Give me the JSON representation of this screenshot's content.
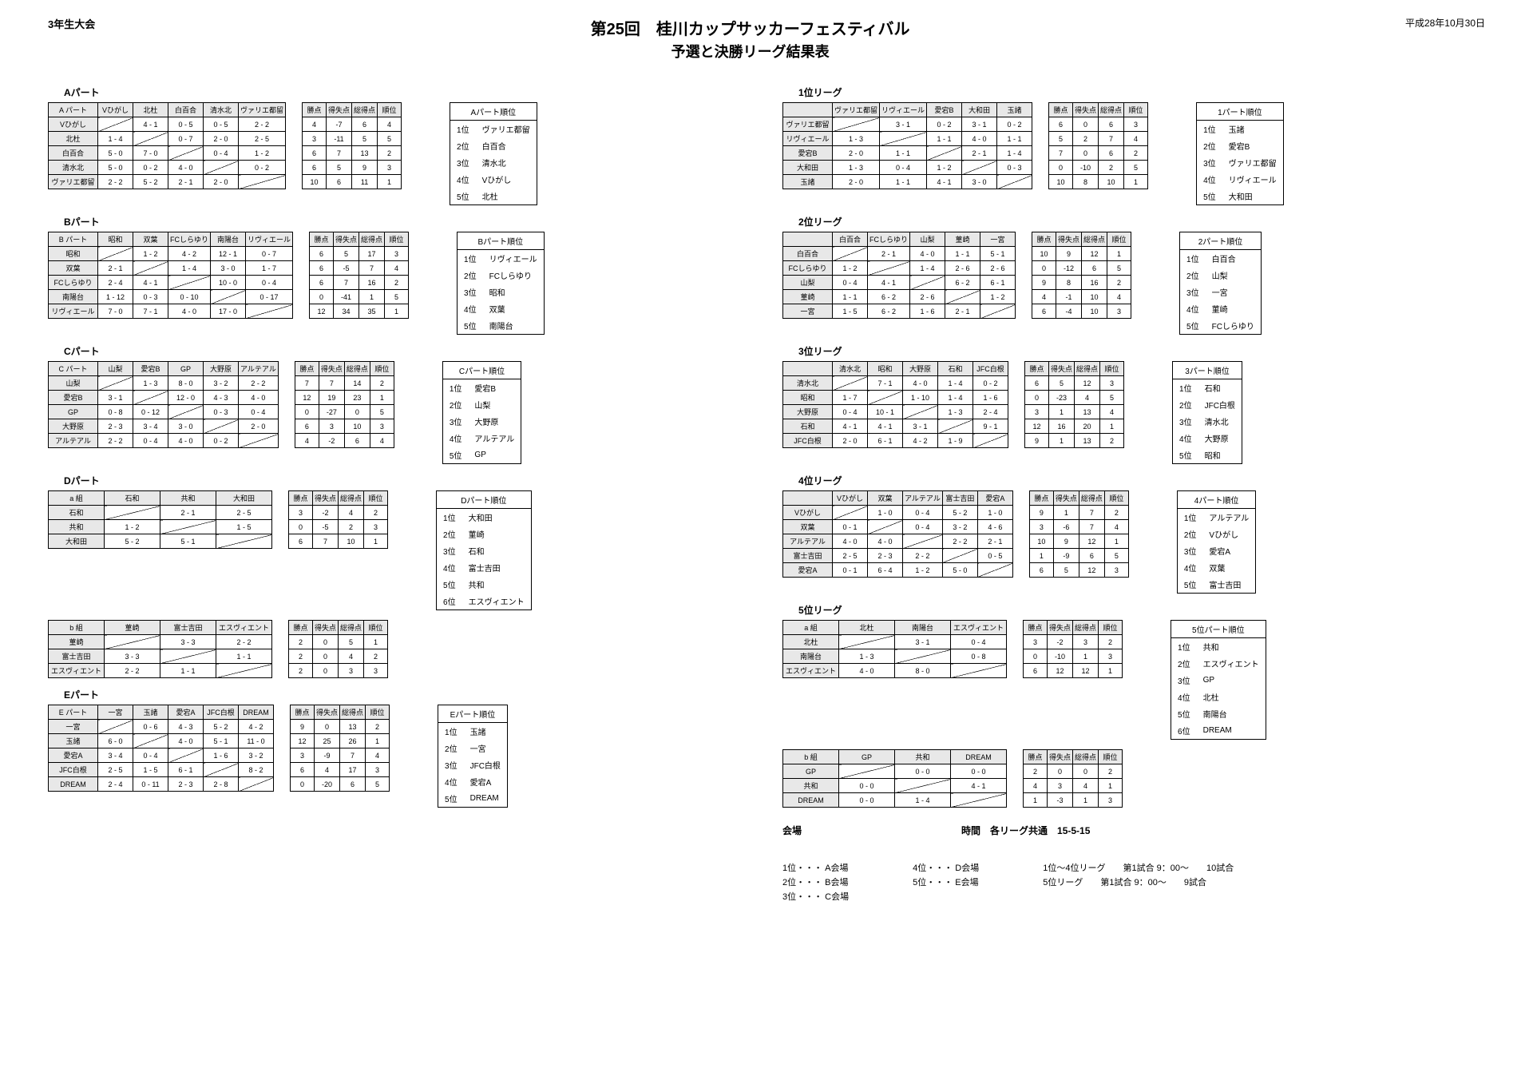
{
  "header": {
    "left": "3年生大会",
    "title1": "第25回　桂川カップサッカーフェスティバル",
    "title2": "予選と決勝リーグ結果表",
    "right": "平成28年10月30日"
  },
  "stat_headers": [
    "勝点",
    "得失点",
    "総得点",
    "順位"
  ],
  "stat_headers_wide": [
    "勝点",
    "得失点",
    "総得点",
    "順位"
  ],
  "left_parts": [
    {
      "label": "Aパート",
      "grid_header": "A パート",
      "teams": [
        "Vひがし",
        "北杜",
        "白百合",
        "清水北",
        "ヴァリエ都留"
      ],
      "scores": [
        [
          null,
          "4 - 1",
          "0 - 5",
          "0 - 5",
          "2 - 2"
        ],
        [
          "1 - 4",
          null,
          "0 - 7",
          "2 - 0",
          "2 - 5"
        ],
        [
          "5 - 0",
          "7 - 0",
          null,
          "0 - 4",
          "1 - 2"
        ],
        [
          "5 - 0",
          "0 - 2",
          "4 - 0",
          null,
          "0 - 2"
        ],
        [
          "2 - 2",
          "5 - 2",
          "2 - 1",
          "2 - 0",
          null
        ]
      ],
      "stats": [
        [
          "4",
          "-7",
          "6",
          "4"
        ],
        [
          "3",
          "-11",
          "5",
          "5"
        ],
        [
          "6",
          "7",
          "13",
          "2"
        ],
        [
          "6",
          "5",
          "9",
          "3"
        ],
        [
          "10",
          "6",
          "11",
          "1"
        ]
      ],
      "rank_header": "Aパート順位",
      "ranks": [
        [
          "1位",
          "ヴァリエ都留"
        ],
        [
          "2位",
          "白百合"
        ],
        [
          "3位",
          "清水北"
        ],
        [
          "4位",
          "Vひがし"
        ],
        [
          "5位",
          "北杜"
        ]
      ]
    },
    {
      "label": "Bパート",
      "grid_header": "B パート",
      "teams": [
        "昭和",
        "双葉",
        "FCしらゆり",
        "南陽台",
        "リヴィエール"
      ],
      "scores": [
        [
          null,
          "1 - 2",
          "4 - 2",
          "12 - 1",
          "0 - 7"
        ],
        [
          "2 - 1",
          null,
          "1 - 4",
          "3 - 0",
          "1 - 7"
        ],
        [
          "2 - 4",
          "4 - 1",
          null,
          "10 - 0",
          "0 - 4"
        ],
        [
          "1 - 12",
          "0 - 3",
          "0 - 10",
          null,
          "0 - 17"
        ],
        [
          "7 - 0",
          "7 - 1",
          "4 - 0",
          "17 - 0",
          null
        ]
      ],
      "stats": [
        [
          "6",
          "5",
          "17",
          "3"
        ],
        [
          "6",
          "-5",
          "7",
          "4"
        ],
        [
          "6",
          "7",
          "16",
          "2"
        ],
        [
          "0",
          "-41",
          "1",
          "5"
        ],
        [
          "12",
          "34",
          "35",
          "1"
        ]
      ],
      "rank_header": "Bパート順位",
      "ranks": [
        [
          "1位",
          "リヴィエール"
        ],
        [
          "2位",
          "FCしらゆり"
        ],
        [
          "3位",
          "昭和"
        ],
        [
          "4位",
          "双葉"
        ],
        [
          "5位",
          "南陽台"
        ]
      ]
    },
    {
      "label": "Cパート",
      "grid_header": "C パート",
      "teams": [
        "山梨",
        "愛宕B",
        "GP",
        "大野原",
        "アルテアル"
      ],
      "scores": [
        [
          null,
          "1 - 3",
          "8 - 0",
          "3 - 2",
          "2 - 2"
        ],
        [
          "3 - 1",
          null,
          "12 - 0",
          "4 - 3",
          "4 - 0"
        ],
        [
          "0 - 8",
          "0 - 12",
          null,
          "0 - 3",
          "0 - 4"
        ],
        [
          "2 - 3",
          "3 - 4",
          "3 - 0",
          null,
          "2 - 0"
        ],
        [
          "2 - 2",
          "0 - 4",
          "4 - 0",
          "0 - 2",
          null
        ]
      ],
      "stats": [
        [
          "7",
          "7",
          "14",
          "2"
        ],
        [
          "12",
          "19",
          "23",
          "1"
        ],
        [
          "0",
          "-27",
          "0",
          "5"
        ],
        [
          "6",
          "3",
          "10",
          "3"
        ],
        [
          "4",
          "-2",
          "6",
          "4"
        ]
      ],
      "rank_header": "Cパート順位",
      "ranks": [
        [
          "1位",
          "愛宕B"
        ],
        [
          "2位",
          "山梨"
        ],
        [
          "3位",
          "大野原"
        ],
        [
          "4位",
          "アルテアル"
        ],
        [
          "5位",
          "GP"
        ]
      ]
    }
  ],
  "d_part": {
    "label": "Dパート",
    "a_header": "a 組",
    "a_teams": [
      "石和",
      "共和",
      "大和田"
    ],
    "a_scores": [
      [
        null,
        "2 - 1",
        "2 - 5"
      ],
      [
        "1 - 2",
        null,
        "1 - 5"
      ],
      [
        "5 - 2",
        "5 - 1",
        null
      ]
    ],
    "a_stats": [
      [
        "3",
        "-2",
        "4",
        "2"
      ],
      [
        "0",
        "-5",
        "2",
        "3"
      ],
      [
        "6",
        "7",
        "10",
        "1"
      ]
    ],
    "b_header": "b 組",
    "b_teams": [
      "菫崎",
      "富士吉田",
      "エスヴィエント"
    ],
    "b_scores": [
      [
        null,
        "3 - 3",
        "2 - 2"
      ],
      [
        "3 - 3",
        null,
        "1 - 1"
      ],
      [
        "2 - 2",
        "1 - 1",
        null
      ]
    ],
    "b_stats": [
      [
        "2",
        "0",
        "5",
        "1"
      ],
      [
        "2",
        "0",
        "4",
        "2"
      ],
      [
        "2",
        "0",
        "3",
        "3"
      ]
    ],
    "rank_header": "Dパート順位",
    "ranks": [
      [
        "1位",
        "大和田"
      ],
      [
        "2位",
        "菫崎"
      ],
      [
        "3位",
        "石和"
      ],
      [
        "4位",
        "富士吉田"
      ],
      [
        "5位",
        "共和"
      ],
      [
        "6位",
        "エスヴィエント"
      ]
    ]
  },
  "e_part": {
    "label": "Eパート",
    "grid_header": "E パート",
    "teams": [
      "一宮",
      "玉諸",
      "愛宕A",
      "JFC白根",
      "DREAM"
    ],
    "scores": [
      [
        null,
        "0 - 6",
        "4 - 3",
        "5 - 2",
        "4 - 2"
      ],
      [
        "6 - 0",
        null,
        "4 - 0",
        "5 - 1",
        "11 - 0"
      ],
      [
        "3 - 4",
        "0 - 4",
        null,
        "1 - 6",
        "3 - 2"
      ],
      [
        "2 - 5",
        "1 - 5",
        "6 - 1",
        null,
        "8 - 2"
      ],
      [
        "2 - 4",
        "0 - 11",
        "2 - 3",
        "2 - 8",
        null
      ]
    ],
    "stats": [
      [
        "9",
        "0",
        "13",
        "2"
      ],
      [
        "12",
        "25",
        "26",
        "1"
      ],
      [
        "3",
        "-9",
        "7",
        "4"
      ],
      [
        "6",
        "4",
        "17",
        "3"
      ],
      [
        "0",
        "-20",
        "6",
        "5"
      ]
    ],
    "rank_header": "Eパート順位",
    "ranks": [
      [
        "1位",
        "玉諸"
      ],
      [
        "2位",
        "一宮"
      ],
      [
        "3位",
        "JFC白根"
      ],
      [
        "4位",
        "愛宕A"
      ],
      [
        "5位",
        "DREAM"
      ]
    ]
  },
  "right_leagues": [
    {
      "label": "1位リーグ",
      "teams": [
        "ヴァリエ都留",
        "リヴィエール",
        "愛宕B",
        "大和田",
        "玉諸"
      ],
      "scores": [
        [
          null,
          "3 - 1",
          "0 - 2",
          "3 - 1",
          "0 - 2"
        ],
        [
          "1 - 3",
          null,
          "1 - 1",
          "4 - 0",
          "1 - 1"
        ],
        [
          "2 - 0",
          "1 - 1",
          null,
          "2 - 1",
          "1 - 4"
        ],
        [
          "1 - 3",
          "0 - 4",
          "1 - 2",
          null,
          "0 - 3"
        ],
        [
          "2 - 0",
          "1 - 1",
          "4 - 1",
          "3 - 0",
          null
        ]
      ],
      "stats": [
        [
          "6",
          "0",
          "6",
          "3"
        ],
        [
          "5",
          "2",
          "7",
          "4"
        ],
        [
          "7",
          "0",
          "6",
          "2"
        ],
        [
          "0",
          "-10",
          "2",
          "5"
        ],
        [
          "10",
          "8",
          "10",
          "1"
        ]
      ],
      "rank_header": "1パート順位",
      "ranks": [
        [
          "1位",
          "玉諸"
        ],
        [
          "2位",
          "愛宕B"
        ],
        [
          "3位",
          "ヴァリエ都留"
        ],
        [
          "4位",
          "リヴィエール"
        ],
        [
          "5位",
          "大和田"
        ]
      ]
    },
    {
      "label": "2位リーグ",
      "teams": [
        "白百合",
        "FCしらゆり",
        "山梨",
        "菫崎",
        "一宮"
      ],
      "scores": [
        [
          null,
          "2 - 1",
          "4 - 0",
          "1 - 1",
          "5 - 1"
        ],
        [
          "1 - 2",
          null,
          "1 - 4",
          "2 - 6",
          "2 - 6"
        ],
        [
          "0 - 4",
          "4 - 1",
          null,
          "6 - 2",
          "6 - 1"
        ],
        [
          "1 - 1",
          "6 - 2",
          "2 - 6",
          null,
          "1 - 2"
        ],
        [
          "1 - 5",
          "6 - 2",
          "1 - 6",
          "2 - 1",
          null
        ]
      ],
      "stats": [
        [
          "10",
          "9",
          "12",
          "1"
        ],
        [
          "0",
          "-12",
          "6",
          "5"
        ],
        [
          "9",
          "8",
          "16",
          "2"
        ],
        [
          "4",
          "-1",
          "10",
          "4"
        ],
        [
          "6",
          "-4",
          "10",
          "3"
        ]
      ],
      "rank_header": "2パート順位",
      "ranks": [
        [
          "1位",
          "白百合"
        ],
        [
          "2位",
          "山梨"
        ],
        [
          "3位",
          "一宮"
        ],
        [
          "4位",
          "菫崎"
        ],
        [
          "5位",
          "FCしらゆり"
        ]
      ]
    },
    {
      "label": "3位リーグ",
      "teams": [
        "清水北",
        "昭和",
        "大野原",
        "石和",
        "JFC白根"
      ],
      "scores": [
        [
          null,
          "7 - 1",
          "4 - 0",
          "1 - 4",
          "0 - 2"
        ],
        [
          "1 - 7",
          null,
          "1 - 10",
          "1 - 4",
          "1 - 6"
        ],
        [
          "0 - 4",
          "10 - 1",
          null,
          "1 - 3",
          "2 - 4"
        ],
        [
          "4 - 1",
          "4 - 1",
          "3 - 1",
          null,
          "9 - 1"
        ],
        [
          "2 - 0",
          "6 - 1",
          "4 - 2",
          "1 - 9",
          null
        ]
      ],
      "stats": [
        [
          "6",
          "5",
          "12",
          "3"
        ],
        [
          "0",
          "-23",
          "4",
          "5"
        ],
        [
          "3",
          "1",
          "13",
          "4"
        ],
        [
          "12",
          "16",
          "20",
          "1"
        ],
        [
          "9",
          "1",
          "13",
          "2"
        ]
      ],
      "rank_header": "3パート順位",
      "ranks": [
        [
          "1位",
          "石和"
        ],
        [
          "2位",
          "JFC白根"
        ],
        [
          "3位",
          "清水北"
        ],
        [
          "4位",
          "大野原"
        ],
        [
          "5位",
          "昭和"
        ]
      ]
    },
    {
      "label": "4位リーグ",
      "teams": [
        "Vひがし",
        "双葉",
        "アルテアル",
        "富士吉田",
        "愛宕A"
      ],
      "scores": [
        [
          null,
          "1 - 0",
          "0 - 4",
          "5 - 2",
          "1 - 0"
        ],
        [
          "0 - 1",
          null,
          "0 - 4",
          "3 - 2",
          "4 - 6"
        ],
        [
          "4 - 0",
          "4 - 0",
          null,
          "2 - 2",
          "2 - 1"
        ],
        [
          "2 - 5",
          "2 - 3",
          "2 - 2",
          null,
          "0 - 5"
        ],
        [
          "0 - 1",
          "6 - 4",
          "1 - 2",
          "5 - 0",
          null
        ]
      ],
      "stats": [
        [
          "9",
          "1",
          "7",
          "2"
        ],
        [
          "3",
          "-6",
          "7",
          "4"
        ],
        [
          "10",
          "9",
          "12",
          "1"
        ],
        [
          "1",
          "-9",
          "6",
          "5"
        ],
        [
          "6",
          "5",
          "12",
          "3"
        ]
      ],
      "rank_header": "4パート順位",
      "ranks": [
        [
          "1位",
          "アルテアル"
        ],
        [
          "2位",
          "Vひがし"
        ],
        [
          "3位",
          "愛宕A"
        ],
        [
          "4位",
          "双葉"
        ],
        [
          "5位",
          "富士吉田"
        ]
      ]
    }
  ],
  "league5": {
    "label": "5位リーグ",
    "a_header": "a 組",
    "a_teams": [
      "北杜",
      "南陽台",
      "エスヴィエント"
    ],
    "a_scores": [
      [
        null,
        "3 - 1",
        "0 - 4"
      ],
      [
        "1 - 3",
        null,
        "0 - 8"
      ],
      [
        "4 - 0",
        "8 - 0",
        null
      ]
    ],
    "a_stats": [
      [
        "3",
        "-2",
        "3",
        "2"
      ],
      [
        "0",
        "-10",
        "1",
        "3"
      ],
      [
        "6",
        "12",
        "12",
        "1"
      ]
    ],
    "b_header": "b 組",
    "b_teams": [
      "GP",
      "共和",
      "DREAM"
    ],
    "b_scores": [
      [
        null,
        "0 - 0",
        "0 - 0"
      ],
      [
        "0 - 0",
        null,
        "4 - 1"
      ],
      [
        "0 - 0",
        "1 - 4",
        null
      ]
    ],
    "b_stats": [
      [
        "2",
        "0",
        "0",
        "2"
      ],
      [
        "4",
        "3",
        "4",
        "1"
      ],
      [
        "1",
        "-3",
        "1",
        "3"
      ]
    ],
    "rank_header": "5位パート順位",
    "ranks": [
      [
        "1位",
        "共和"
      ],
      [
        "2位",
        "エスヴィエント"
      ],
      [
        "3位",
        "GP"
      ],
      [
        "4位",
        "北杜"
      ],
      [
        "5位",
        "南陽台"
      ],
      [
        "6位",
        "DREAM"
      ]
    ]
  },
  "footer": {
    "venue_label": "会場",
    "time_label": "時間　各リーグ共通　15-5-15",
    "venues": [
      "1位・・・ A会場",
      "2位・・・ B会場",
      "3位・・・ C会場",
      "4位・・・ D会場",
      "5位・・・ E会場"
    ],
    "schedule": [
      [
        "1位～4位リーグ",
        "第1試合 9：00～",
        "10試合"
      ],
      [
        "5位リーグ",
        "第1試合 9：00～",
        "9試合"
      ]
    ]
  }
}
